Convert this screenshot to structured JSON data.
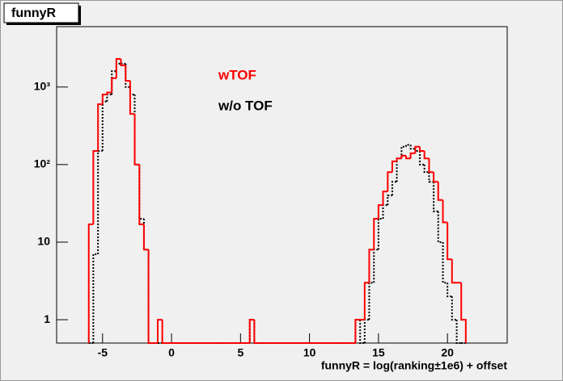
{
  "chart_data": {
    "type": "histogram",
    "title": "funnyR",
    "xlabel": "funnyR = log(ranking±1e6) + offset",
    "xlim": [
      -8.33,
      24.33
    ],
    "ylim": [
      0.5,
      6000
    ],
    "log_y": true,
    "xticks": [
      -5,
      0,
      5,
      10,
      15,
      20
    ],
    "yticks": [
      1,
      10,
      {
        "value": 100,
        "label": "10²"
      },
      {
        "value": 1000,
        "label": "10³"
      }
    ],
    "bins": [
      -6,
      -5.67,
      -5.33,
      -5,
      -4.67,
      -4.33,
      -4,
      -3.67,
      -3.33,
      -3,
      -2.67,
      -2.33,
      -2,
      -1.67,
      -1.33,
      -1,
      -0.67,
      -0.33,
      0,
      0.33,
      0.67,
      1,
      1.33,
      1.67,
      2,
      2.33,
      2.67,
      3,
      3.33,
      3.67,
      4,
      4.33,
      4.67,
      5,
      5.33,
      5.67,
      6,
      6.33,
      6.67,
      7,
      7.33,
      7.67,
      8,
      8.33,
      8.67,
      9,
      9.33,
      9.67,
      10,
      10.33,
      10.67,
      11,
      11.33,
      11.67,
      12,
      12.33,
      12.67,
      13,
      13.33,
      13.67,
      14,
      14.33,
      14.67,
      15,
      15.33,
      15.67,
      16,
      16.33,
      16.67,
      17,
      17.33,
      17.67,
      18,
      18.33,
      18.67,
      19,
      19.33,
      19.67,
      20,
      20.33,
      20.67,
      21,
      21.33
    ],
    "series": [
      {
        "name": "w/o TOF",
        "color": "#000000",
        "style": "dotted",
        "values": [
          0,
          7,
          150,
          650,
          800,
          1600,
          2000,
          2000,
          1000,
          800,
          100,
          20,
          8,
          0,
          0,
          0,
          0,
          0,
          0,
          0,
          0,
          0,
          0,
          0,
          0,
          0,
          0,
          0,
          0,
          0,
          0,
          0,
          0,
          0,
          0,
          1,
          0,
          0,
          0,
          0,
          0,
          0,
          0,
          0,
          0,
          0,
          0,
          0,
          0,
          0,
          0,
          0,
          0,
          0,
          0,
          0,
          0,
          0,
          1,
          0,
          1,
          3,
          8,
          20,
          30,
          40,
          60,
          120,
          170,
          180,
          160,
          150,
          100,
          80,
          60,
          25,
          10,
          3,
          2,
          1,
          0,
          0
        ]
      },
      {
        "name": "wTOF",
        "color": "#ff0000",
        "style": "solid",
        "values": [
          17,
          150,
          600,
          800,
          850,
          1300,
          2300,
          1900,
          1200,
          450,
          100,
          17,
          8,
          0,
          0,
          1,
          0,
          0,
          0,
          0,
          0,
          0,
          0,
          0,
          0,
          0,
          0,
          0,
          0,
          0,
          0,
          0,
          0,
          0,
          0,
          1,
          0,
          0,
          0,
          0,
          0,
          0,
          0,
          0,
          0,
          0,
          0,
          0,
          0,
          0,
          0,
          0,
          0,
          0,
          0,
          0,
          0,
          0,
          1,
          1,
          3,
          8,
          20,
          30,
          45,
          80,
          110,
          120,
          130,
          120,
          140,
          170,
          150,
          120,
          80,
          60,
          35,
          18,
          6,
          3,
          3,
          1
        ]
      }
    ]
  }
}
